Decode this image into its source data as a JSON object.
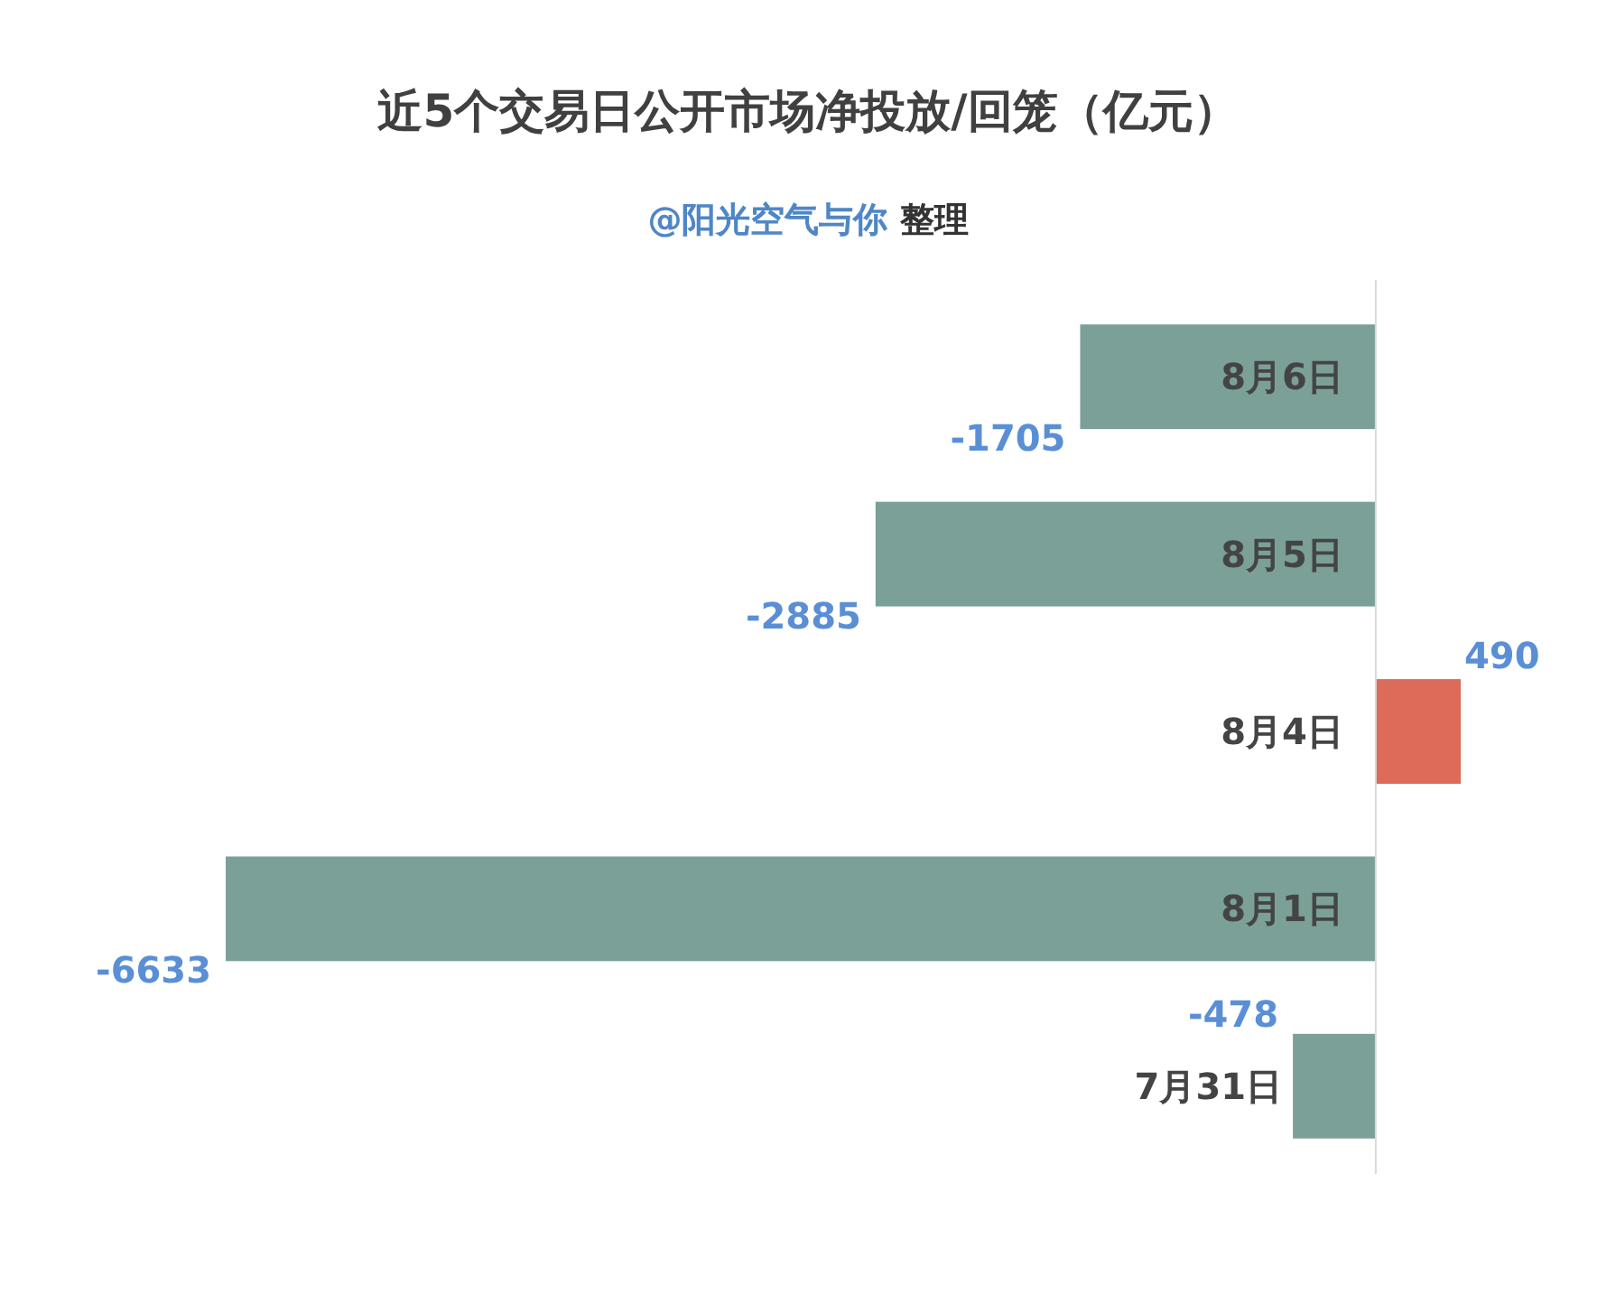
{
  "chart_data": {
    "type": "bar",
    "orientation": "horizontal",
    "title": "近5个交易日公开市场净投放/回笼（亿元）",
    "subtitle": "@阳光空气与你 整理",
    "categories": [
      "8月6日",
      "8月5日",
      "8月4日",
      "8月1日",
      "7月31日"
    ],
    "values": [
      -1705,
      -2885,
      490,
      -6633,
      -478
    ],
    "colors": [
      "#7ba098",
      "#7ba098",
      "#dc6b5a",
      "#7ba098",
      "#7ba098"
    ],
    "data_labels": true
  }
}
